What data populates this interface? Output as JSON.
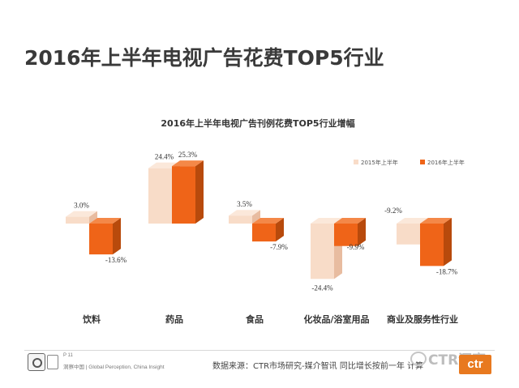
{
  "page": {
    "title": "2016年上半年电视广告花费TOP5行业"
  },
  "chart_data": {
    "type": "bar",
    "title": "2016年上半年电视广告刊例花费TOP5行业增幅",
    "categories": [
      "饮料",
      "药品",
      "食品",
      "化妆品/浴室用品",
      "商业及服务性行业"
    ],
    "series": [
      {
        "name": "2015年上半年",
        "values": [
          3.0,
          24.4,
          3.5,
          -24.4,
          -9.2
        ],
        "labels": [
          "3.0%",
          "24.4%",
          "3.5%",
          "-24.4%",
          "-9.2%"
        ]
      },
      {
        "name": "2016年上半年",
        "values": [
          -13.6,
          25.3,
          -7.9,
          -9.9,
          -18.7
        ],
        "labels": [
          "-13.6%",
          "25.3%",
          "-7.9%",
          "-9.9%",
          "-18.7%"
        ]
      }
    ],
    "unit": "%",
    "ylim": [
      -30,
      30
    ],
    "legend_position": "top-right",
    "grid": false,
    "three_d": true,
    "colors": {
      "series_2015_front": "#f8dcc8",
      "series_2015_side": "#e8bca0",
      "series_2015_top": "#fbe8da",
      "series_2016_front": "#ef6418",
      "series_2016_side": "#b84a0c",
      "series_2016_top": "#f48848"
    }
  },
  "footer": {
    "page_number": "P 11",
    "tagline": "洞察中国 | Global Perception, China Insight",
    "source": "数据来源：CTR市场研究-媒介智讯  同比增长按前一年  计算",
    "watermark": "CTR洞察",
    "logo": "ctr"
  }
}
